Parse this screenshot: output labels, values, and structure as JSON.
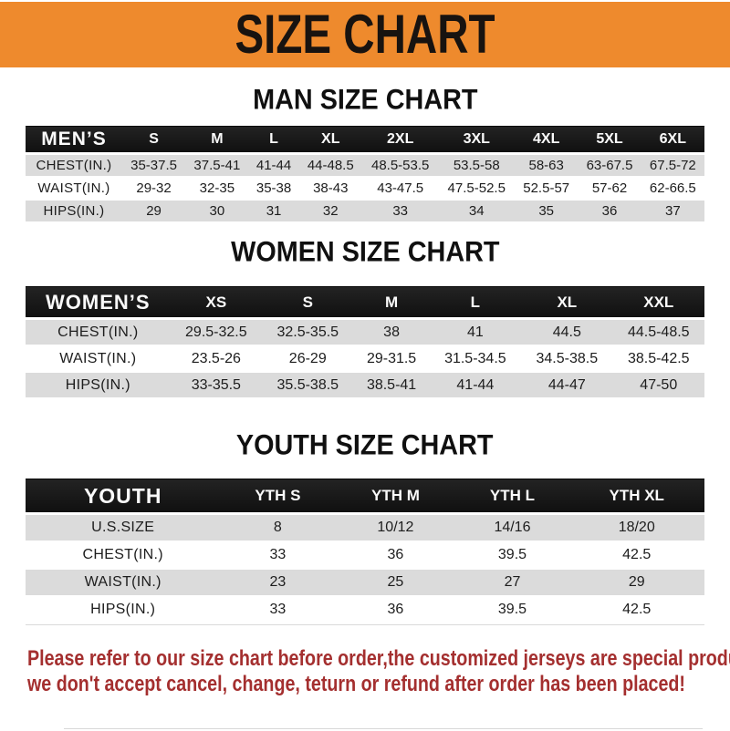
{
  "banner": {
    "title": "SIZE CHART"
  },
  "sections": [
    {
      "heading": "MAN SIZE CHART",
      "label": "MEN’S",
      "columns": [
        "S",
        "M",
        "L",
        "XL",
        "2XL",
        "3XL",
        "4XL",
        "5XL",
        "6XL"
      ],
      "rows": [
        {
          "label": "CHEST(IN.)",
          "values": [
            "35-37.5",
            "37.5-41",
            "41-44",
            "44-48.5",
            "48.5-53.5",
            "53.5-58",
            "58-63",
            "63-67.5",
            "67.5-72"
          ]
        },
        {
          "label": "WAIST(IN.)",
          "values": [
            "29-32",
            "32-35",
            "35-38",
            "38-43",
            "43-47.5",
            "47.5-52.5",
            "52.5-57",
            "57-62",
            "62-66.5"
          ]
        },
        {
          "label": "HIPS(IN.)",
          "values": [
            "29",
            "30",
            "31",
            "32",
            "33",
            "34",
            "35",
            "36",
            "37"
          ]
        }
      ]
    },
    {
      "heading": "WOMEN SIZE CHART",
      "label": "WOMEN’S",
      "columns": [
        "XS",
        "S",
        "M",
        "L",
        "XL",
        "XXL"
      ],
      "rows": [
        {
          "label": "CHEST(IN.)",
          "values": [
            "29.5-32.5",
            "32.5-35.5",
            "38",
            "41",
            "44.5",
            "44.5-48.5"
          ]
        },
        {
          "label": "WAIST(IN.)",
          "values": [
            "23.5-26",
            "26-29",
            "29-31.5",
            "31.5-34.5",
            "34.5-38.5",
            "38.5-42.5"
          ]
        },
        {
          "label": "HIPS(IN.)",
          "values": [
            "33-35.5",
            "35.5-38.5",
            "38.5-41",
            "41-44",
            "44-47",
            "47-50"
          ]
        }
      ]
    },
    {
      "heading": "YOUTH SIZE CHART",
      "label": "YOUTH",
      "columns": [
        "YTH S",
        "YTH M",
        "YTH L",
        "YTH XL"
      ],
      "rows": [
        {
          "label": "U.S.SIZE",
          "values": [
            "8",
            "10/12",
            "14/16",
            "18/20"
          ]
        },
        {
          "label": "CHEST(IN.)",
          "values": [
            "33",
            "36",
            "39.5",
            "42.5"
          ]
        },
        {
          "label": "WAIST(IN.)",
          "values": [
            "23",
            "25",
            "27",
            "29"
          ]
        },
        {
          "label": "HIPS(IN.)",
          "values": [
            "33",
            "36",
            "39.5",
            "42.5"
          ]
        }
      ]
    }
  ],
  "footer": {
    "line1": "Please refer to our size chart before order,the customized jerseys are special products,",
    "line2": "we don't accept cancel, change, teturn or refund after order has been placed!"
  },
  "colors": {
    "banner_bg": "#ee8a2d",
    "header_bar_bg": "#191919",
    "row_shade": "#dbdbdb",
    "footer_text": "#a42f2f"
  }
}
